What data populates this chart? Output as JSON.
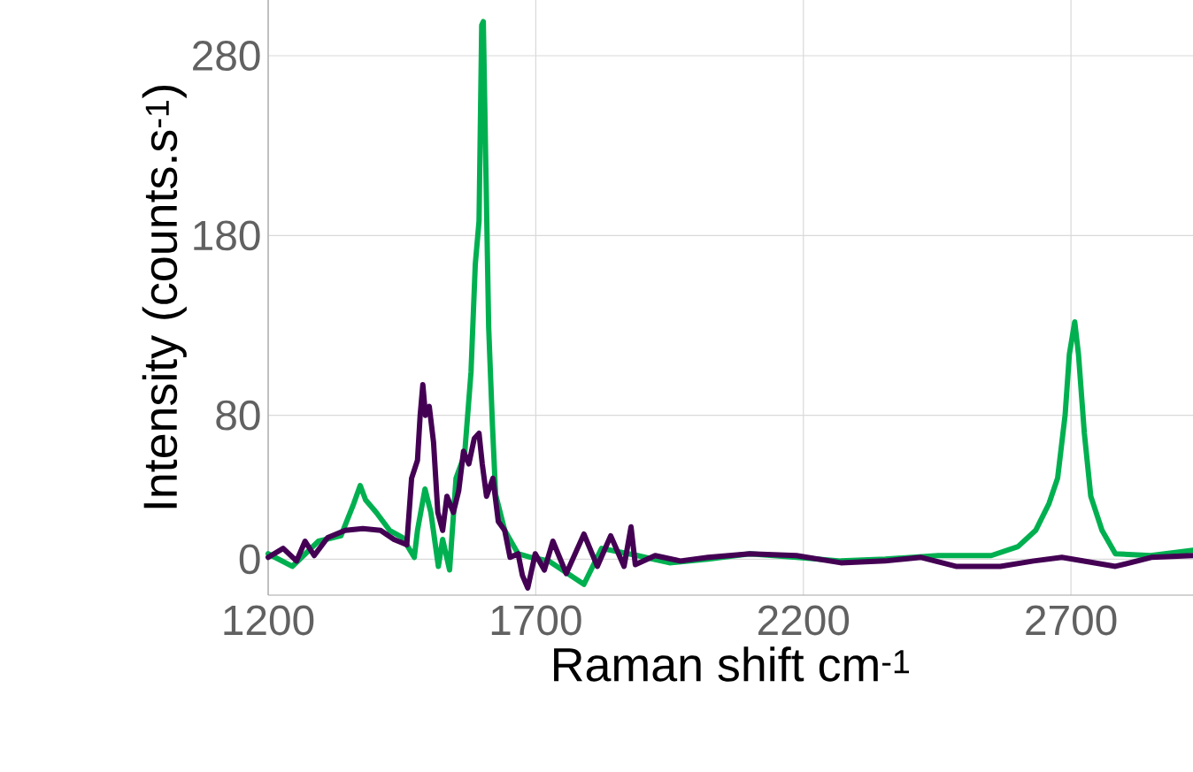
{
  "chart_data": {
    "type": "line",
    "xlabel": "Raman shift cm$^{-1}$",
    "ylabel": "Intensity (counts.s$^{-1}$)",
    "xlim": [
      1200,
      2928
    ],
    "ylim": [
      -20,
      311
    ],
    "xticks": [
      1200,
      1700,
      2200,
      2700
    ],
    "yticks": [
      0,
      80,
      180,
      280
    ],
    "grid": true,
    "line_style": "solid",
    "series": [
      {
        "color": "#00b050",
        "x": [
          1200,
          1245,
          1294,
          1336,
          1360,
          1372,
          1382,
          1402,
          1427,
          1451,
          1473,
          1479,
          1493,
          1504,
          1518,
          1526,
          1539,
          1551,
          1567,
          1579,
          1587,
          1594,
          1599,
          1602,
          1607,
          1612,
          1619,
          1625,
          1642,
          1667,
          1691,
          1724,
          1790,
          1823,
          1890,
          1950,
          2022,
          2100,
          2187,
          2270,
          2353,
          2452,
          2551,
          2601,
          2634,
          2659,
          2675,
          2689,
          2697,
          2707,
          2714,
          2725,
          2737,
          2758,
          2783,
          2849,
          2928
        ],
        "values": [
          3,
          -4,
          10,
          13,
          31,
          41,
          33,
          26,
          16,
          12,
          1,
          16,
          39,
          26,
          -4,
          11,
          -6,
          45,
          58,
          104,
          164,
          188,
          297,
          299,
          213,
          129,
          75,
          36,
          16,
          3,
          1,
          -1,
          -14,
          6,
          2,
          -2,
          0,
          3,
          1,
          -1,
          0,
          2,
          2,
          7,
          16,
          31,
          45,
          80,
          114,
          132,
          114,
          70,
          35,
          16,
          3,
          2,
          5
        ]
      },
      {
        "color": "#440154",
        "x": [
          1200,
          1228,
          1253,
          1269,
          1286,
          1311,
          1344,
          1377,
          1410,
          1435,
          1459,
          1468,
          1479,
          1484,
          1489,
          1494,
          1501,
          1509,
          1517,
          1526,
          1534,
          1546,
          1556,
          1565,
          1575,
          1585,
          1594,
          1600,
          1608,
          1620,
          1630,
          1642,
          1652,
          1667,
          1675,
          1685,
          1699,
          1716,
          1732,
          1757,
          1790,
          1815,
          1840,
          1865,
          1878,
          1886,
          1923,
          1970,
          2022,
          2100,
          2187,
          2270,
          2353,
          2420,
          2485,
          2568,
          2630,
          2683,
          2783,
          2850,
          2928
        ],
        "values": [
          1,
          6,
          -1,
          10,
          2,
          12,
          16,
          17,
          16,
          11,
          8,
          45,
          55,
          80,
          97,
          80,
          85,
          65,
          26,
          16,
          35,
          26,
          38,
          60,
          53,
          67,
          70,
          53,
          35,
          45,
          21,
          16,
          1,
          3,
          -9,
          -16,
          3,
          -6,
          10,
          -8,
          14,
          -4,
          13,
          -4,
          18,
          -3,
          2,
          -1,
          1,
          3,
          2,
          -2,
          -1,
          1,
          -4,
          -4,
          -1,
          1,
          -4,
          1,
          2
        ]
      }
    ]
  }
}
